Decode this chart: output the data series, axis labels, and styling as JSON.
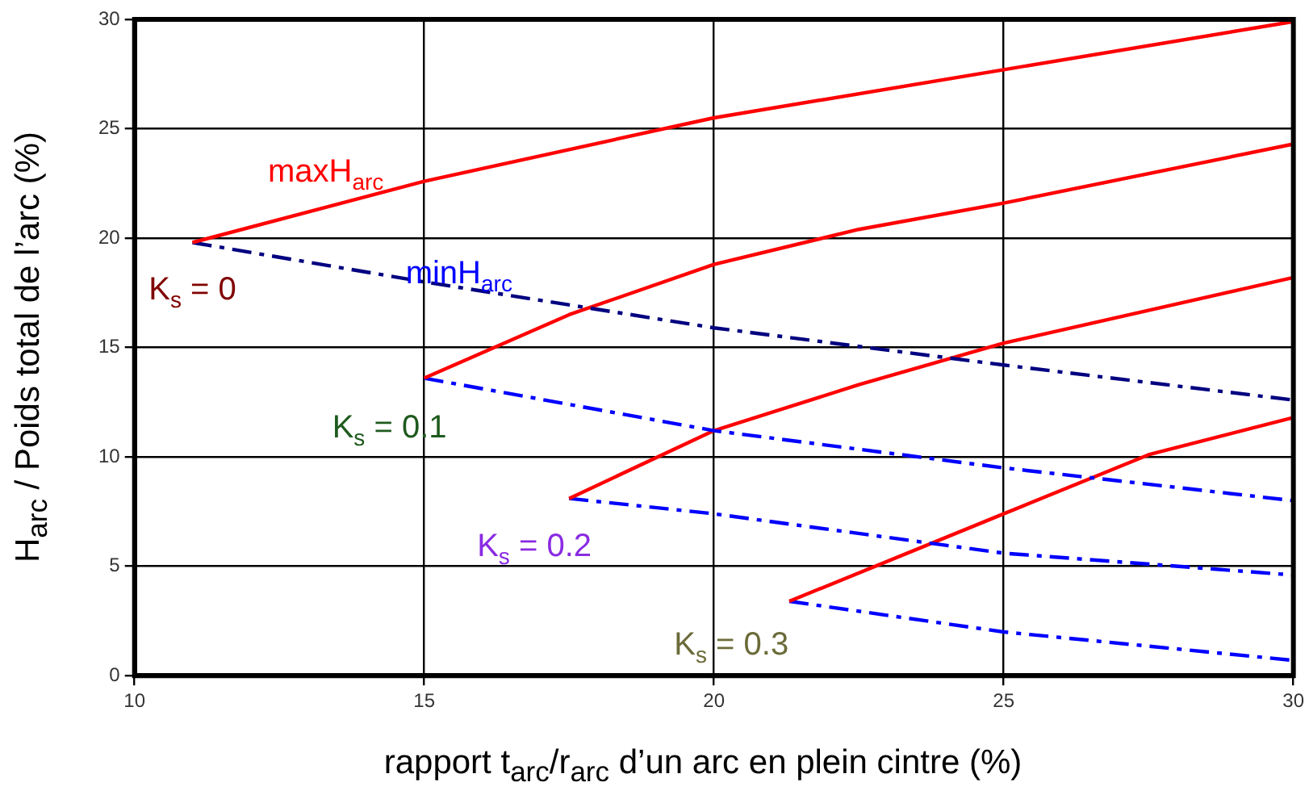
{
  "chart_data": {
    "type": "line",
    "xlabel": "rapport t$_{arc}$/r$_{arc}$ d’un arc en plein cintre (%)",
    "ylabel": "H$_{arc}$ / Poids total de l’arc (%)",
    "xlim": [
      10,
      30
    ],
    "xticks": [
      10,
      15,
      20,
      25,
      30
    ],
    "ylim": [
      0,
      30
    ],
    "yticks": [
      0,
      5,
      10,
      15,
      20,
      25,
      30
    ],
    "grid": true,
    "legend": false,
    "marker": "none",
    "series": [
      {
        "color": "#ff0000",
        "line_style": "solid",
        "x": [
          11,
          15,
          20,
          25,
          30
        ],
        "values": [
          19.8,
          22.6,
          25.5,
          27.7,
          29.9
        ]
      },
      {
        "color": "#000080",
        "line_style": "dashed",
        "x": [
          11,
          15,
          20,
          25,
          30
        ],
        "values": [
          19.8,
          18.0,
          15.9,
          14.2,
          12.6
        ]
      },
      {
        "color": "#ff0000",
        "line_style": "solid",
        "x": [
          15,
          17.5,
          20,
          22.5,
          25,
          30
        ],
        "values": [
          13.6,
          16.5,
          18.8,
          20.4,
          21.6,
          24.3
        ]
      },
      {
        "color": "#0000ff",
        "line_style": "dashed",
        "x": [
          15,
          20,
          25,
          30
        ],
        "values": [
          13.6,
          11.2,
          9.5,
          8.0
        ]
      },
      {
        "color": "#ff0000",
        "line_style": "solid",
        "x": [
          17.5,
          20,
          22.5,
          25,
          30
        ],
        "values": [
          8.1,
          11.2,
          13.3,
          15.2,
          18.2
        ]
      },
      {
        "color": "#0000ff",
        "line_style": "dashed",
        "x": [
          17.5,
          20,
          25,
          30
        ],
        "values": [
          8.1,
          7.4,
          5.6,
          4.6
        ]
      },
      {
        "color": "#ff0000",
        "line_style": "solid",
        "x": [
          21.3,
          25,
          27.5,
          30
        ],
        "values": [
          3.4,
          7.4,
          10.1,
          11.8
        ]
      },
      {
        "color": "#0000ff",
        "line_style": "dashed",
        "x": [
          21.3,
          25,
          30
        ],
        "values": [
          3.4,
          2.0,
          0.7
        ]
      }
    ],
    "annotations": [
      "maxH$_{arc}$",
      "minH$_{arc}$",
      "K$_{s}$ = 0",
      "K$_{s}$ = 0.1",
      "K$_{s}$ = 0.2",
      "K$_{s}$ = 0.3"
    ]
  }
}
